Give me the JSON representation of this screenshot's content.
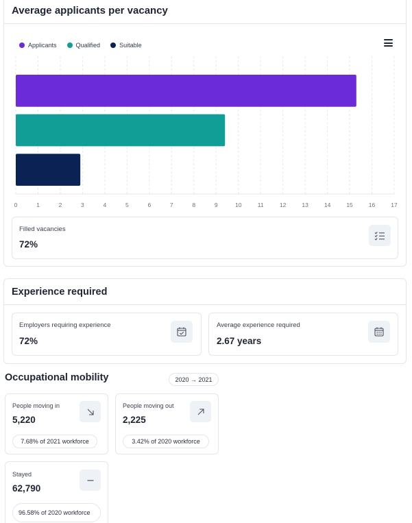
{
  "applicants_card": {
    "title": "Average applicants per vacancy",
    "legend": [
      {
        "label": "Applicants",
        "color": "#6c2bd9"
      },
      {
        "label": "Qualified",
        "color": "#109e96"
      },
      {
        "label": "Suitable",
        "color": "#0b2254"
      }
    ],
    "filled": {
      "label": "Filled vacancies",
      "value": "72%",
      "icon": "checklist-icon"
    }
  },
  "chart_data": {
    "type": "bar",
    "orientation": "horizontal",
    "categories": [
      "Applicants",
      "Qualified",
      "Suitable"
    ],
    "series": [
      {
        "values": [
          15.3,
          9.4,
          2.9
        ]
      }
    ],
    "colors": [
      "#6c2bd9",
      "#109e96",
      "#0b2254"
    ],
    "xlim": [
      0,
      17
    ],
    "x_ticks": [
      "0",
      "1",
      "2",
      "3",
      "4",
      "5",
      "6",
      "7",
      "8",
      "9",
      "10",
      "11",
      "12",
      "13",
      "14",
      "15",
      "16",
      "17"
    ],
    "grid": "vertical dashed",
    "legend": "top-left"
  },
  "experience_card": {
    "title": "Experience required",
    "employers": {
      "label": "Employers requiring experience",
      "value": "72%",
      "icon": "calendar-check-icon"
    },
    "average": {
      "label": "Average experience required",
      "value": "2.67 years",
      "icon": "calendar-grid-icon"
    }
  },
  "mobility": {
    "title": "Occupational mobility",
    "period": "2020 → 2021",
    "moving_in": {
      "label": "People moving in",
      "value": "5,220",
      "note": "7.68% of 2021 workforce",
      "icon": "arrow-down-right-icon"
    },
    "moving_out": {
      "label": "People moving out",
      "value": "2,225",
      "note": "3.42% of 2020 workforce",
      "icon": "arrow-up-right-icon"
    },
    "stayed": {
      "label": "Stayed",
      "value": "62,790",
      "note": "96.58% of 2020 workforce",
      "icon": "minus-icon"
    }
  }
}
